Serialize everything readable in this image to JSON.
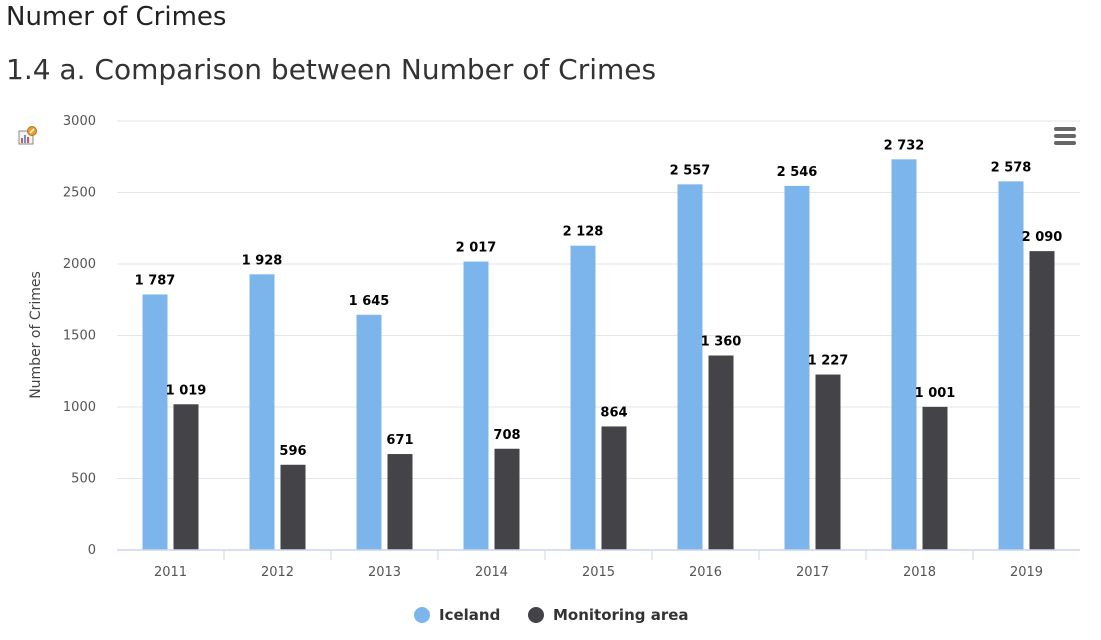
{
  "header": {
    "heading": "Numer of Crimes"
  },
  "chart_data": {
    "type": "bar",
    "title": "1.4 a. Comparison between Number of Crimes",
    "xlabel": "",
    "ylabel": "Number of Crimes",
    "ylim": [
      0,
      3000
    ],
    "yticks": [
      0,
      500,
      1000,
      1500,
      2000,
      2500,
      3000
    ],
    "categories": [
      "2011",
      "2012",
      "2013",
      "2014",
      "2015",
      "2016",
      "2017",
      "2018",
      "2019"
    ],
    "series": [
      {
        "name": "Iceland",
        "color": "#7cb5ec",
        "values": [
          1787,
          1928,
          1645,
          2017,
          2128,
          2557,
          2546,
          2732,
          2578
        ],
        "labels": [
          "1 787",
          "1 928",
          "1 645",
          "2 017",
          "2 128",
          "2 557",
          "2 546",
          "2 732",
          "2 578"
        ]
      },
      {
        "name": "Monitoring area",
        "color": "#434348",
        "values": [
          1019,
          596,
          671,
          708,
          864,
          1360,
          1227,
          1001,
          2090
        ],
        "labels": [
          "1 019",
          "596",
          "671",
          "708",
          "864",
          "1 360",
          "1 227",
          "1 001",
          "2 090"
        ]
      }
    ],
    "grid": true,
    "legend_position": "bottom-center"
  },
  "icons": {
    "menu": "hamburger-menu-icon",
    "export": "chart-export-icon"
  }
}
